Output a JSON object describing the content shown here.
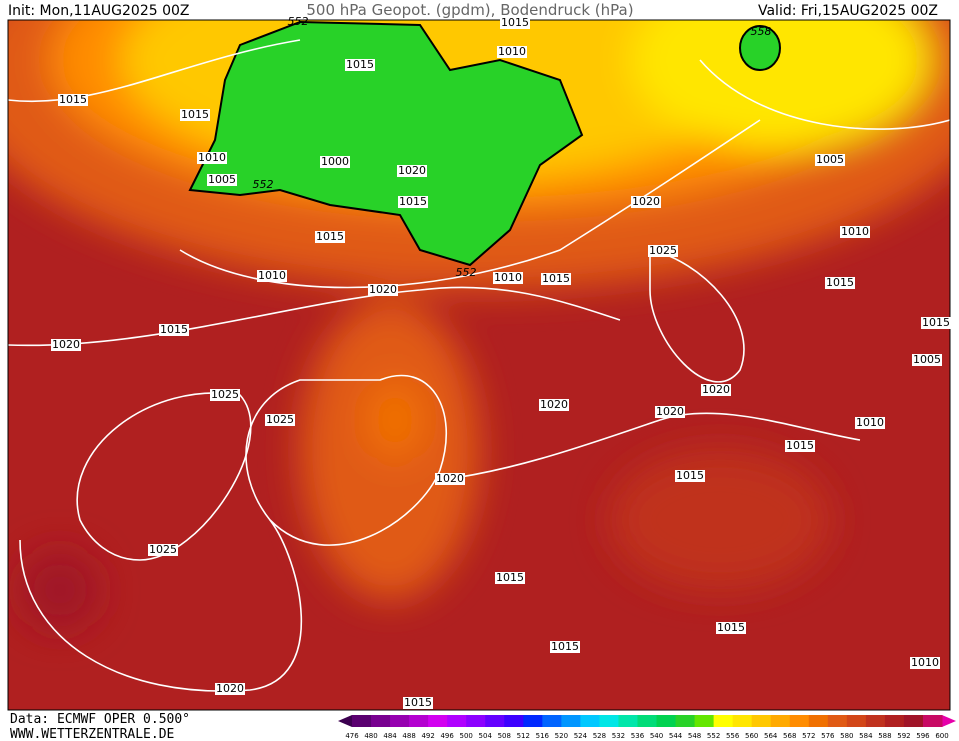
{
  "header": {
    "init": "Init: Mon,11AUG2025 00Z",
    "title": "500 hPa Geopot. (gpdm), Bodendruck (hPa)",
    "valid": "Valid: Fri,15AUG2025 00Z"
  },
  "map": {
    "isobar_labels": [
      "1015",
      "1015",
      "1010",
      "1005",
      "1000",
      "1020",
      "1015",
      "1015",
      "1010",
      "1020",
      "1015",
      "1020",
      "1015",
      "1010",
      "1015",
      "1010",
      "1015",
      "1020",
      "1025",
      "1005",
      "1010",
      "1015",
      "1015",
      "1005",
      "1020",
      "1020",
      "1025",
      "1025",
      "1020",
      "1020",
      "1010",
      "1015",
      "1015",
      "1025",
      "1015",
      "1015",
      "1015",
      "1010",
      "1020",
      "1015"
    ],
    "geopotential_labels": [
      "552",
      "558",
      "552",
      "552"
    ]
  },
  "footer": {
    "source": "Data: ECMWF OPER 0.500°",
    "site": "WWW.WETTERZENTRALE.DE"
  },
  "legend": {
    "levels": [
      476,
      480,
      484,
      488,
      492,
      496,
      500,
      504,
      508,
      512,
      516,
      520,
      524,
      528,
      532,
      536,
      540,
      544,
      548,
      552,
      556,
      560,
      564,
      568,
      572,
      576,
      580,
      584,
      588,
      592,
      596,
      600
    ],
    "colors": [
      "#5a0070",
      "#780090",
      "#9600b0",
      "#b400d0",
      "#d200f0",
      "#b000ff",
      "#8c00ff",
      "#6400ff",
      "#3c00ff",
      "#0028ff",
      "#0064ff",
      "#0096ff",
      "#00c8ff",
      "#00e6e6",
      "#00e6aa",
      "#00dc78",
      "#00d250",
      "#28d228",
      "#64e600",
      "#ffff00",
      "#ffe600",
      "#ffc800",
      "#ffaa00",
      "#ff8c00",
      "#f07000",
      "#e05a14",
      "#d24618",
      "#c0321e",
      "#b02020",
      "#a01428",
      "#c80a64"
    ],
    "low_color": "#3c0050",
    "high_color": "#e600aa"
  }
}
